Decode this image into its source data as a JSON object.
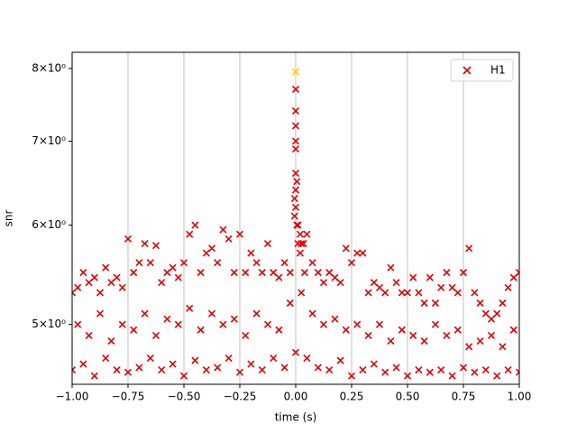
{
  "chart_data": {
    "type": "scatter",
    "xlabel": "time (s)",
    "ylabel": "snr",
    "xlim": [
      -1,
      1
    ],
    "ylim": [
      4.48,
      8.24
    ],
    "yscale": "log",
    "grid": "x",
    "legend": "upper right",
    "xticks": [
      {
        "value": -1,
        "label": "−1.00"
      },
      {
        "value": -0.75,
        "label": "−0.75"
      },
      {
        "value": -0.5,
        "label": "−0.50"
      },
      {
        "value": -0.25,
        "label": "−0.25"
      },
      {
        "value": 0,
        "label": "0.00"
      },
      {
        "value": 0.25,
        "label": "0.25"
      },
      {
        "value": 0.5,
        "label": "0.50"
      },
      {
        "value": 0.75,
        "label": "0.75"
      },
      {
        "value": 1,
        "label": "1.00"
      }
    ],
    "yticks": [
      {
        "value": 5,
        "label": "5×10⁰"
      },
      {
        "value": 6,
        "label": "6×10⁰"
      },
      {
        "value": 7,
        "label": "7×10⁰"
      },
      {
        "value": 8,
        "label": "8×10⁰"
      }
    ],
    "highlight": {
      "x": 0,
      "y": 7.95,
      "color": "#ffd700"
    },
    "series": [
      {
        "name": "H1",
        "color": "#e00000",
        "x": [
          -1,
          -0.975,
          -0.95,
          -0.925,
          -0.9,
          -0.875,
          -0.85,
          -0.825,
          -0.8,
          -0.775,
          -0.75,
          -0.725,
          -0.7,
          -0.675,
          -0.65,
          -0.625,
          -0.6,
          -0.575,
          -0.55,
          -0.525,
          -0.5,
          -0.475,
          -0.45,
          -0.425,
          -0.4,
          -0.375,
          -0.35,
          -0.325,
          -0.3,
          -0.275,
          -0.25,
          -0.225,
          -0.2,
          -0.175,
          -0.15,
          -0.125,
          -0.1,
          -0.075,
          -0.05,
          -0.025,
          0,
          0.025,
          0.05,
          0.075,
          0.1,
          0.125,
          0.15,
          0.175,
          0.2,
          0.225,
          0.25,
          0.275,
          0.3,
          0.325,
          0.35,
          0.375,
          0.4,
          0.425,
          0.45,
          0.475,
          0.5,
          0.525,
          0.55,
          0.575,
          0.6,
          0.625,
          0.65,
          0.675,
          0.7,
          0.725,
          0.75,
          0.775,
          0.8,
          0.825,
          0.85,
          0.875,
          0.9,
          0.925,
          0.95,
          0.975,
          1,
          0,
          0,
          0,
          0,
          0,
          0,
          0,
          0.005,
          0.005,
          -0.005,
          -0.005,
          0.01,
          0.01,
          0.02,
          0.02,
          0.035,
          0.04,
          -0.975,
          -0.925,
          -0.875,
          -0.825,
          -0.775,
          -0.725,
          -0.675,
          -0.625,
          -0.575,
          -0.525,
          -0.475,
          -0.425,
          -0.375,
          -0.325,
          -0.275,
          -0.225,
          -0.175,
          -0.125,
          -0.075,
          -0.025,
          0.025,
          0.075,
          0.125,
          0.175,
          0.225,
          0.275,
          0.325,
          0.375,
          0.425,
          0.475,
          0.525,
          0.575,
          0.625,
          0.675,
          0.725,
          0.775,
          0.825,
          0.875,
          0.925,
          0.975,
          -1,
          -0.95,
          -0.9,
          -0.85,
          -0.8,
          -0.75,
          -0.7,
          -0.65,
          -0.6,
          -0.55,
          -0.5,
          -0.45,
          -0.4,
          -0.35,
          -0.3,
          -0.25,
          -0.2,
          -0.15,
          -0.1,
          -0.05,
          0,
          0.05,
          0.1,
          0.15,
          0.2,
          0.25,
          0.3,
          0.35,
          0.4,
          0.45,
          0.5,
          0.55,
          0.6,
          0.65,
          0.7,
          0.75,
          0.8,
          0.85,
          0.9,
          0.95,
          1
        ],
        "values": [
          5.3,
          5.35,
          5.5,
          5.4,
          5.45,
          5.3,
          5.55,
          5.4,
          5.45,
          5.35,
          5.85,
          5.5,
          5.6,
          5.8,
          5.6,
          5.78,
          5.4,
          5.5,
          5.55,
          5.45,
          5.6,
          5.9,
          6.0,
          5.5,
          5.7,
          5.75,
          5.6,
          5.95,
          5.85,
          5.5,
          5.9,
          5.5,
          5.7,
          5.6,
          5.5,
          5.8,
          5.5,
          5.45,
          5.6,
          5.5,
          7.0,
          5.8,
          5.9,
          5.6,
          5.5,
          5.4,
          5.5,
          5.45,
          5.4,
          5.75,
          5.6,
          5.7,
          5.7,
          5.3,
          5.4,
          5.35,
          5.3,
          5.55,
          5.4,
          5.3,
          5.3,
          5.45,
          5.3,
          5.2,
          5.45,
          5.2,
          5.35,
          5.5,
          5.35,
          5.3,
          5.5,
          5.75,
          5.3,
          5.2,
          5.1,
          5.05,
          5.1,
          5.2,
          5.35,
          5.45,
          5.5,
          7.7,
          7.4,
          7.2,
          6.9,
          6.6,
          6.4,
          6.2,
          6.5,
          6.0,
          6.3,
          6.1,
          6.0,
          5.8,
          5.9,
          5.7,
          5.8,
          5.5,
          5.0,
          4.9,
          5.1,
          4.85,
          5.0,
          4.95,
          5.1,
          4.9,
          5.05,
          5.0,
          5.15,
          4.95,
          5.1,
          5.0,
          5.05,
          4.9,
          5.1,
          5.0,
          4.95,
          5.2,
          5.3,
          5.1,
          5.0,
          5.05,
          4.95,
          5.0,
          4.9,
          5.0,
          4.85,
          4.95,
          4.9,
          4.85,
          5.0,
          4.9,
          4.95,
          4.8,
          4.85,
          4.9,
          4.8,
          4.95,
          4.6,
          4.65,
          4.55,
          4.7,
          4.6,
          4.58,
          4.62,
          4.7,
          4.6,
          4.65,
          4.55,
          4.68,
          4.6,
          4.62,
          4.7,
          4.58,
          4.65,
          4.6,
          4.7,
          4.62,
          4.75,
          4.7,
          4.62,
          4.6,
          4.68,
          4.55,
          4.6,
          4.65,
          4.58,
          4.62,
          4.55,
          4.6,
          4.58,
          4.6,
          4.55,
          4.62,
          4.58,
          4.6,
          4.55,
          4.6,
          4.58
        ]
      }
    ]
  }
}
